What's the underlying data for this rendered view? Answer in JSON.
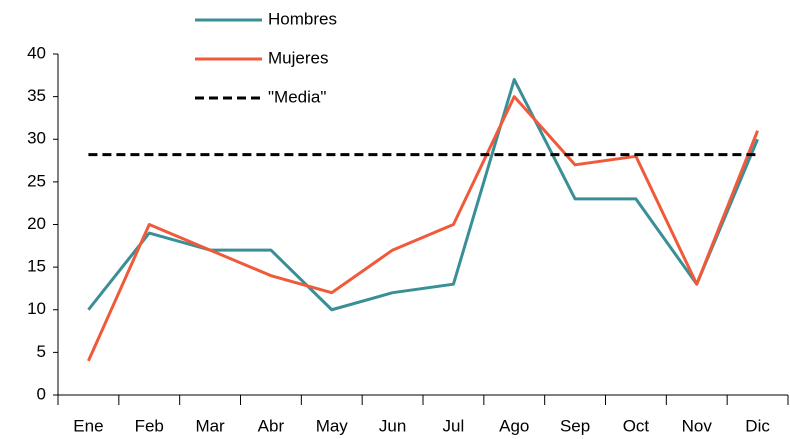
{
  "chart_data": {
    "type": "line",
    "categories": [
      "Ene",
      "Feb",
      "Mar",
      "Abr",
      "May",
      "Jun",
      "Jul",
      "Ago",
      "Sep",
      "Oct",
      "Nov",
      "Dic"
    ],
    "series": [
      {
        "name": "Hombres",
        "color": "#3a8f96",
        "values": [
          10,
          19,
          17,
          17,
          10,
          12,
          13,
          37,
          23,
          23,
          13,
          30
        ]
      },
      {
        "name": "Mujeres",
        "color": "#f05a3a",
        "values": [
          4,
          20,
          17,
          14,
          12,
          17,
          20,
          35,
          27,
          28,
          13,
          31
        ]
      },
      {
        "name": "\"Media\"",
        "color": "#000000",
        "dashed": true,
        "values": [
          28.2,
          28.2,
          28.2,
          28.2,
          28.2,
          28.2,
          28.2,
          28.2,
          28.2,
          28.2,
          28.2,
          28.2
        ]
      }
    ],
    "ylim": [
      0,
      40
    ],
    "yticks": [
      0,
      5,
      10,
      15,
      20,
      25,
      30,
      35,
      40
    ],
    "grid": false,
    "legend": "top"
  }
}
